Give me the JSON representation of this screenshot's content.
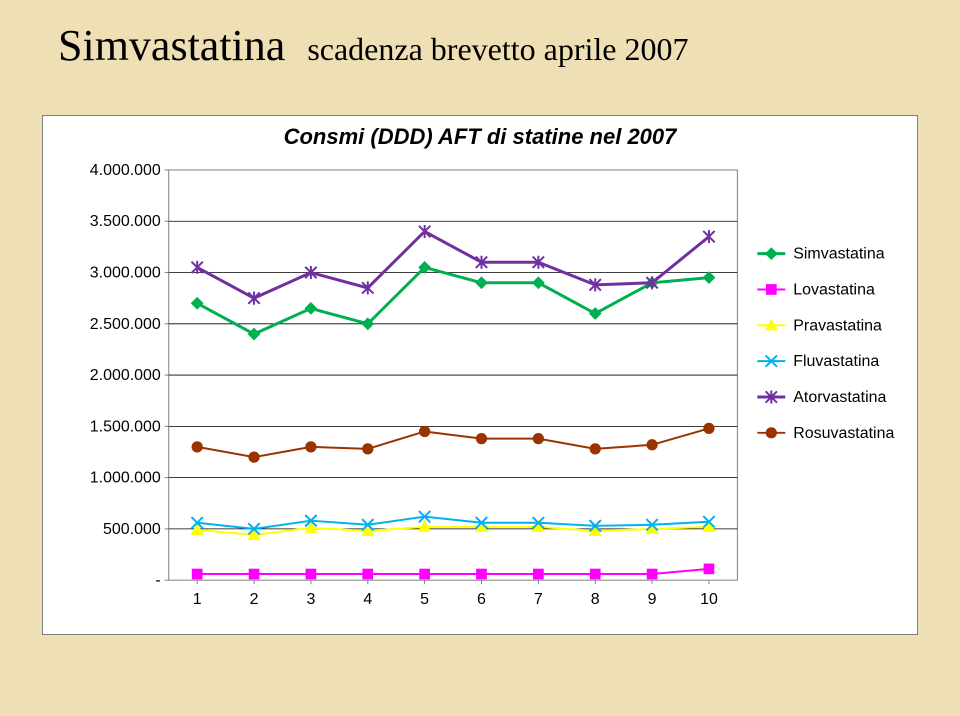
{
  "title": {
    "main": "Simvastatina",
    "sub": "scadenza brevetto aprile 2007"
  },
  "chart": {
    "type": "line",
    "title": "Consmi (DDD) AFT di statine nel 2007",
    "title_fontsize": 22,
    "title_fontfamily": "Arial",
    "title_bold": true,
    "title_italic": true,
    "background_color": "#ffffff",
    "panel_border_color": "#808080",
    "panel_border_width": 1.5,
    "plot_background": "#ffffff",
    "grid_color": "#000000",
    "grid_width": 0.8,
    "plot_border_color": "#808080",
    "plot_border_width": 1,
    "x": {
      "categories": [
        "1",
        "2",
        "3",
        "4",
        "5",
        "6",
        "7",
        "8",
        "9",
        "10"
      ],
      "label_fontsize": 16,
      "tick_color": "#808080"
    },
    "y": {
      "min": 0,
      "max": 4000000,
      "tick_step": 500000,
      "tick_labels": [
        "-",
        "500.000",
        "1.000.000",
        "1.500.000",
        "2.000.000",
        "2.500.000",
        "3.000.000",
        "3.500.000",
        "4.000.000"
      ],
      "label_fontsize": 16
    },
    "legend": {
      "position": "right",
      "fontsize": 16,
      "items": [
        "Simvastatina",
        "Lovastatina",
        "Pravastatina",
        "Fluvastatina",
        "Atorvastatina",
        "Rosuvastatina"
      ]
    },
    "marker_size": 8,
    "line_width": 2,
    "series": [
      {
        "name": "Simvastatina",
        "color": "#00b050",
        "line_width": 3,
        "marker": "diamond",
        "marker_color": "#00b050",
        "data": [
          2700000,
          2400000,
          2650000,
          2500000,
          3050000,
          2900000,
          2900000,
          2600000,
          2900000,
          2950000
        ]
      },
      {
        "name": "Lovastatina",
        "color": "#ff00ff",
        "line_width": 2,
        "marker": "square",
        "marker_color": "#ff00ff",
        "data": [
          60000,
          60000,
          60000,
          60000,
          60000,
          60000,
          60000,
          60000,
          60000,
          110000
        ]
      },
      {
        "name": "Pravastatina",
        "color": "#ffff00",
        "line_width": 2,
        "marker": "triangle",
        "marker_color": "#ffff00",
        "data": [
          490000,
          440000,
          510000,
          480000,
          520000,
          520000,
          520000,
          480000,
          500000,
          520000
        ]
      },
      {
        "name": "Fluvastatina",
        "color": "#00b0f0",
        "line_width": 2,
        "marker": "x",
        "marker_color": "#00b0f0",
        "data": [
          560000,
          500000,
          580000,
          540000,
          620000,
          560000,
          560000,
          530000,
          540000,
          570000
        ]
      },
      {
        "name": "Atorvastatina",
        "color": "#7030a0",
        "line_width": 3,
        "marker": "asterisk",
        "marker_color": "#7030a0",
        "data": [
          3050000,
          2750000,
          3000000,
          2850000,
          3400000,
          3100000,
          3100000,
          2880000,
          2900000,
          3350000
        ]
      },
      {
        "name": "Rosuvastatina",
        "color": "#993300",
        "line_width": 2,
        "marker": "circle",
        "marker_color": "#993300",
        "data": [
          1300000,
          1200000,
          1300000,
          1280000,
          1450000,
          1380000,
          1380000,
          1280000,
          1320000,
          1480000
        ]
      }
    ]
  }
}
